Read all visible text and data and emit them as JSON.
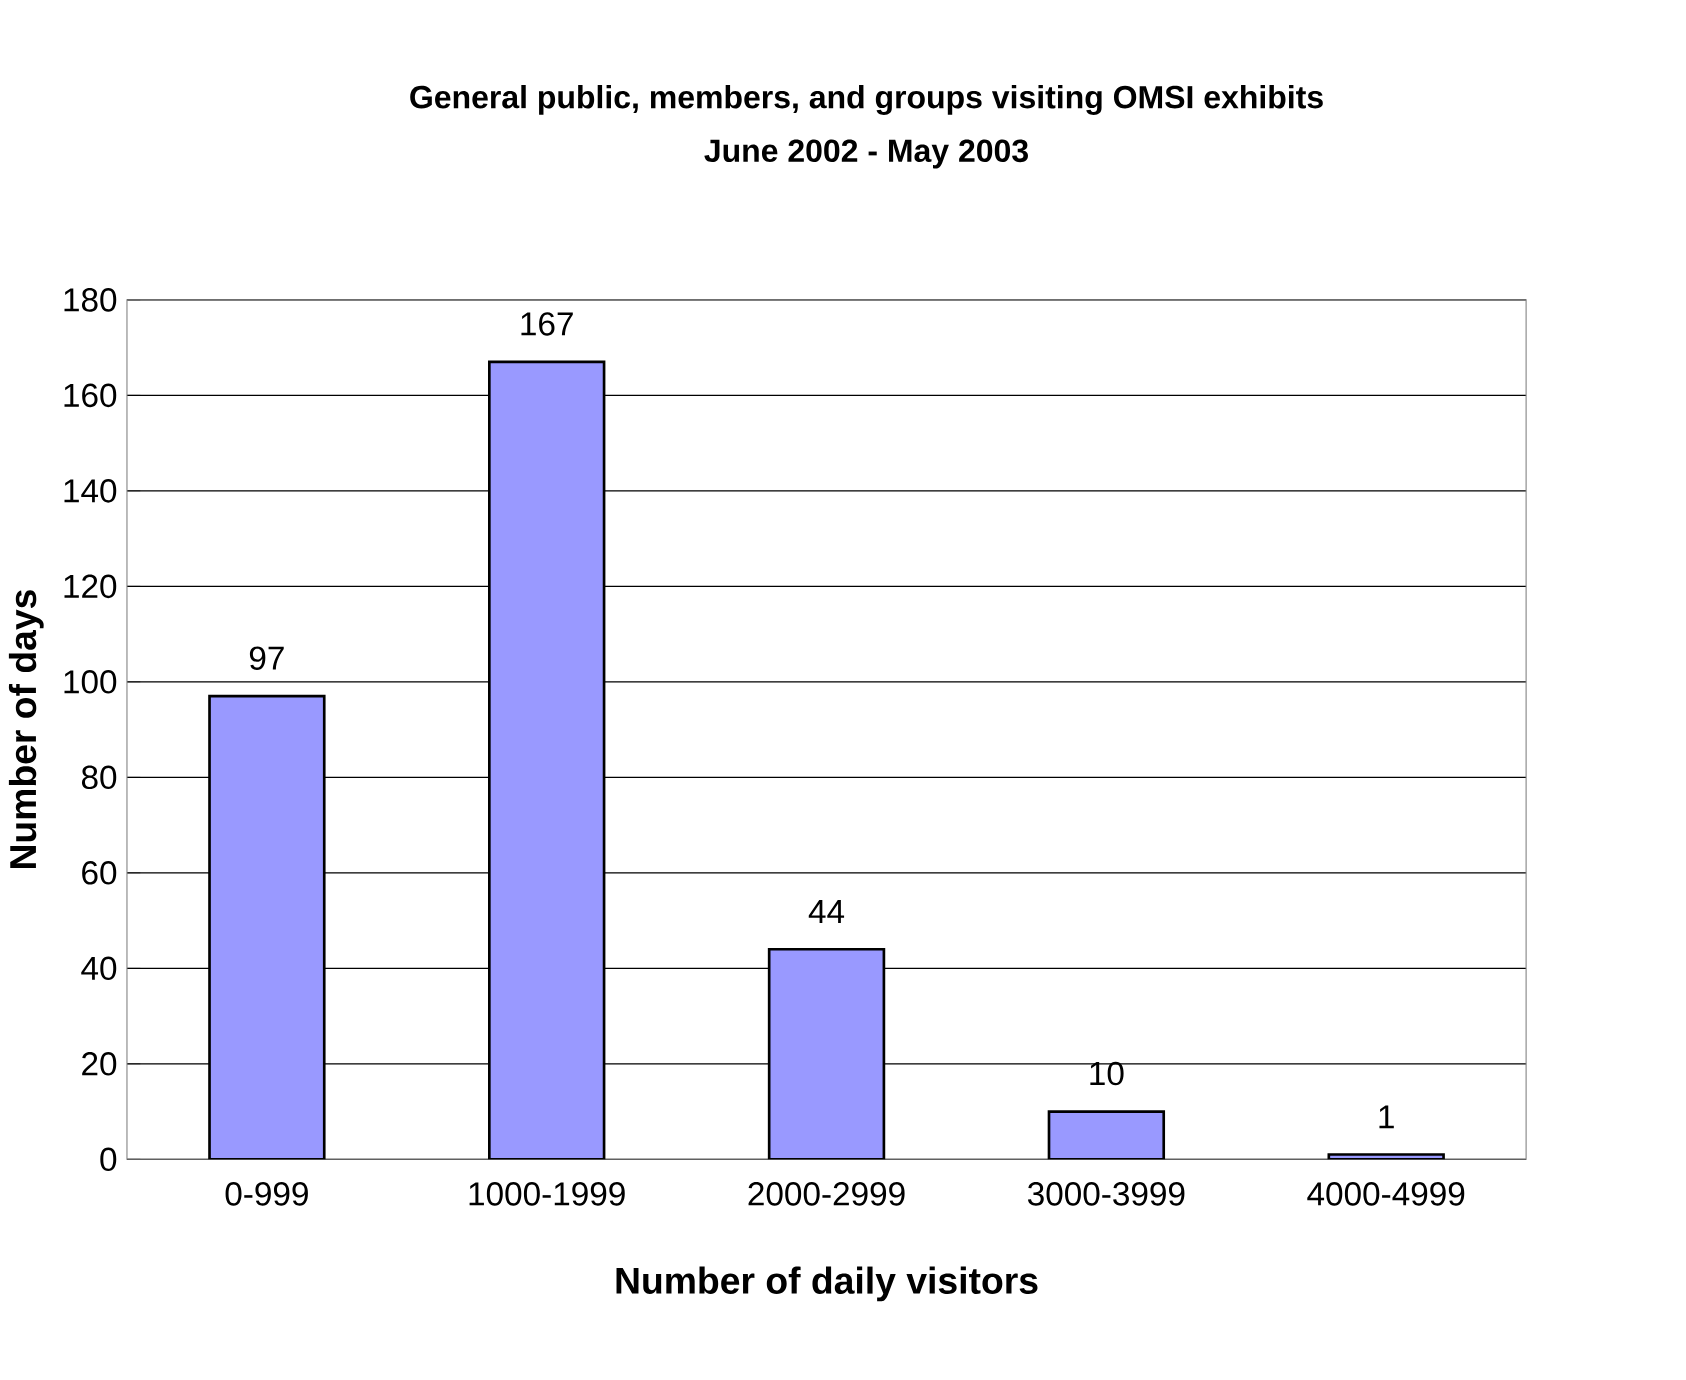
{
  "chart_data": {
    "type": "bar",
    "title": "General public, members, and groups visiting OMSI exhibits",
    "subtitle": "June 2002 - May 2003",
    "xlabel": "Number of daily visitors",
    "ylabel": "Number of days",
    "categories": [
      "0-999",
      "1000-1999",
      "2000-2999",
      "3000-3999",
      "4000-4999"
    ],
    "values": [
      97,
      167,
      44,
      10,
      1
    ],
    "color": "#9999ff",
    "ylim": [
      0,
      180
    ],
    "yticks": [
      0,
      20,
      40,
      60,
      80,
      100,
      120,
      140,
      160,
      180
    ],
    "grid": "y",
    "data_labels": true
  }
}
